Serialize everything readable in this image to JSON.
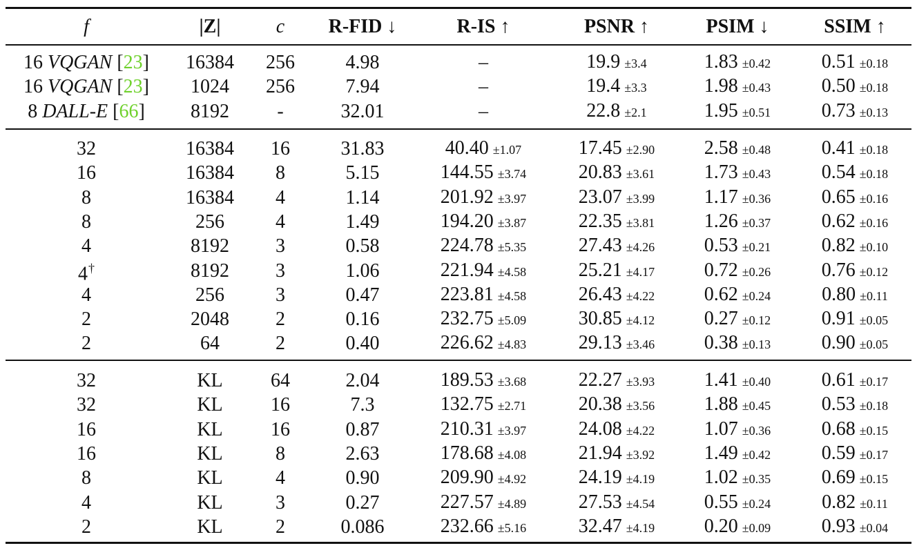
{
  "headers": [
    "f",
    "|Z|",
    "c",
    "R-FID ↓",
    "R-IS ↑",
    "PSNR ↑",
    "PSIM ↓",
    "SSIM ↑"
  ],
  "groups": [
    {
      "rows": [
        [
          {
            "t": "16",
            "m": "VQGAN",
            "c": "23"
          },
          {
            "t": "16384"
          },
          {
            "t": "256"
          },
          {
            "t": "4.98"
          },
          {
            "t": "–"
          },
          {
            "t": "19.9",
            "s": "±3.4"
          },
          {
            "t": "1.83",
            "s": "±0.42"
          },
          {
            "t": "0.51",
            "s": "±0.18"
          }
        ],
        [
          {
            "t": "16",
            "m": "VQGAN",
            "c": "23"
          },
          {
            "t": "1024"
          },
          {
            "t": "256"
          },
          {
            "t": "7.94"
          },
          {
            "t": "–"
          },
          {
            "t": "19.4",
            "s": "±3.3"
          },
          {
            "t": "1.98",
            "s": "±0.43"
          },
          {
            "t": "0.50",
            "s": "±0.18"
          }
        ],
        [
          {
            "t": "8",
            "m": "DALL-E",
            "c": "66"
          },
          {
            "t": "8192"
          },
          {
            "t": "-"
          },
          {
            "t": "32.01"
          },
          {
            "t": "–"
          },
          {
            "t": "22.8",
            "s": "±2.1"
          },
          {
            "t": "1.95",
            "s": "±0.51"
          },
          {
            "t": "0.73",
            "s": "±0.13"
          }
        ]
      ]
    },
    {
      "rows": [
        [
          {
            "t": "32"
          },
          {
            "t": "16384"
          },
          {
            "t": "16"
          },
          {
            "t": "31.83"
          },
          {
            "t": "40.40",
            "s": "±1.07"
          },
          {
            "t": "17.45",
            "s": "±2.90"
          },
          {
            "t": "2.58",
            "s": "±0.48"
          },
          {
            "t": "0.41",
            "s": "±0.18"
          }
        ],
        [
          {
            "t": "16"
          },
          {
            "t": "16384"
          },
          {
            "t": "8"
          },
          {
            "t": "5.15"
          },
          {
            "t": "144.55",
            "s": "±3.74"
          },
          {
            "t": "20.83",
            "s": "±3.61"
          },
          {
            "t": "1.73",
            "s": "±0.43"
          },
          {
            "t": "0.54",
            "s": "±0.18"
          }
        ],
        [
          {
            "t": "8"
          },
          {
            "t": "16384"
          },
          {
            "t": "4"
          },
          {
            "t": "1.14"
          },
          {
            "t": "201.92",
            "s": "±3.97"
          },
          {
            "t": "23.07",
            "s": "±3.99"
          },
          {
            "t": "1.17",
            "s": "±0.36"
          },
          {
            "t": "0.65",
            "s": "±0.16"
          }
        ],
        [
          {
            "t": "8"
          },
          {
            "t": "256"
          },
          {
            "t": "4"
          },
          {
            "t": "1.49"
          },
          {
            "t": "194.20",
            "s": "±3.87"
          },
          {
            "t": "22.35",
            "s": "±3.81"
          },
          {
            "t": "1.26",
            "s": "±0.37"
          },
          {
            "t": "0.62",
            "s": "±0.16"
          }
        ],
        [
          {
            "t": "4"
          },
          {
            "t": "8192"
          },
          {
            "t": "3"
          },
          {
            "t": "0.58"
          },
          {
            "t": "224.78",
            "s": "±5.35"
          },
          {
            "t": "27.43",
            "s": "±4.26"
          },
          {
            "t": "0.53",
            "s": "±0.21"
          },
          {
            "t": "0.82",
            "s": "±0.10"
          }
        ],
        [
          {
            "t": "4",
            "dag": "†"
          },
          {
            "t": "8192"
          },
          {
            "t": "3"
          },
          {
            "t": "1.06"
          },
          {
            "t": "221.94",
            "s": "±4.58"
          },
          {
            "t": "25.21",
            "s": "±4.17"
          },
          {
            "t": "0.72",
            "s": "±0.26"
          },
          {
            "t": "0.76",
            "s": "±0.12"
          }
        ],
        [
          {
            "t": "4"
          },
          {
            "t": "256"
          },
          {
            "t": "3"
          },
          {
            "t": "0.47"
          },
          {
            "t": "223.81",
            "s": "±4.58"
          },
          {
            "t": "26.43",
            "s": "±4.22"
          },
          {
            "t": "0.62",
            "s": "±0.24"
          },
          {
            "t": "0.80",
            "s": "±0.11"
          }
        ],
        [
          {
            "t": "2"
          },
          {
            "t": "2048"
          },
          {
            "t": "2"
          },
          {
            "t": "0.16"
          },
          {
            "t": "232.75",
            "s": "±5.09"
          },
          {
            "t": "30.85",
            "s": "±4.12"
          },
          {
            "t": "0.27",
            "s": "±0.12"
          },
          {
            "t": "0.91",
            "s": "±0.05"
          }
        ],
        [
          {
            "t": "2"
          },
          {
            "t": "64"
          },
          {
            "t": "2"
          },
          {
            "t": "0.40"
          },
          {
            "t": "226.62",
            "s": "±4.83"
          },
          {
            "t": "29.13",
            "s": "±3.46"
          },
          {
            "t": "0.38",
            "s": "±0.13"
          },
          {
            "t": "0.90",
            "s": "±0.05"
          }
        ]
      ]
    },
    {
      "rows": [
        [
          {
            "t": "32"
          },
          {
            "t": "KL"
          },
          {
            "t": "64"
          },
          {
            "t": "2.04"
          },
          {
            "t": "189.53",
            "s": "±3.68"
          },
          {
            "t": "22.27",
            "s": "±3.93"
          },
          {
            "t": "1.41",
            "s": "±0.40"
          },
          {
            "t": "0.61",
            "s": "±0.17"
          }
        ],
        [
          {
            "t": "32"
          },
          {
            "t": "KL"
          },
          {
            "t": "16"
          },
          {
            "t": "7.3"
          },
          {
            "t": "132.75",
            "s": "±2.71"
          },
          {
            "t": "20.38",
            "s": "±3.56"
          },
          {
            "t": "1.88",
            "s": "±0.45"
          },
          {
            "t": "0.53",
            "s": "±0.18"
          }
        ],
        [
          {
            "t": "16"
          },
          {
            "t": "KL"
          },
          {
            "t": "16"
          },
          {
            "t": "0.87"
          },
          {
            "t": "210.31",
            "s": "±3.97"
          },
          {
            "t": "24.08",
            "s": "±4.22"
          },
          {
            "t": "1.07",
            "s": "±0.36"
          },
          {
            "t": "0.68",
            "s": "±0.15"
          }
        ],
        [
          {
            "t": "16"
          },
          {
            "t": "KL"
          },
          {
            "t": "8"
          },
          {
            "t": "2.63"
          },
          {
            "t": "178.68",
            "s": "±4.08"
          },
          {
            "t": "21.94",
            "s": "±3.92"
          },
          {
            "t": "1.49",
            "s": "±0.42"
          },
          {
            "t": "0.59",
            "s": "±0.17"
          }
        ],
        [
          {
            "t": "8"
          },
          {
            "t": "KL"
          },
          {
            "t": "4"
          },
          {
            "t": "0.90"
          },
          {
            "t": "209.90",
            "s": "±4.92"
          },
          {
            "t": "24.19",
            "s": "±4.19"
          },
          {
            "t": "1.02",
            "s": "±0.35"
          },
          {
            "t": "0.69",
            "s": "±0.15"
          }
        ],
        [
          {
            "t": "4"
          },
          {
            "t": "KL"
          },
          {
            "t": "3"
          },
          {
            "t": "0.27"
          },
          {
            "t": "227.57",
            "s": "±4.89"
          },
          {
            "t": "27.53",
            "s": "±4.54"
          },
          {
            "t": "0.55",
            "s": "±0.24"
          },
          {
            "t": "0.82",
            "s": "±0.11"
          }
        ],
        [
          {
            "t": "2"
          },
          {
            "t": "KL"
          },
          {
            "t": "2"
          },
          {
            "t": "0.086"
          },
          {
            "t": "232.66",
            "s": "±5.16"
          },
          {
            "t": "32.47",
            "s": "±4.19"
          },
          {
            "t": "0.20",
            "s": "±0.09"
          },
          {
            "t": "0.93",
            "s": "±0.04"
          }
        ]
      ]
    }
  ],
  "colors": {
    "citation": "#6fd12c",
    "text": "#111111"
  }
}
